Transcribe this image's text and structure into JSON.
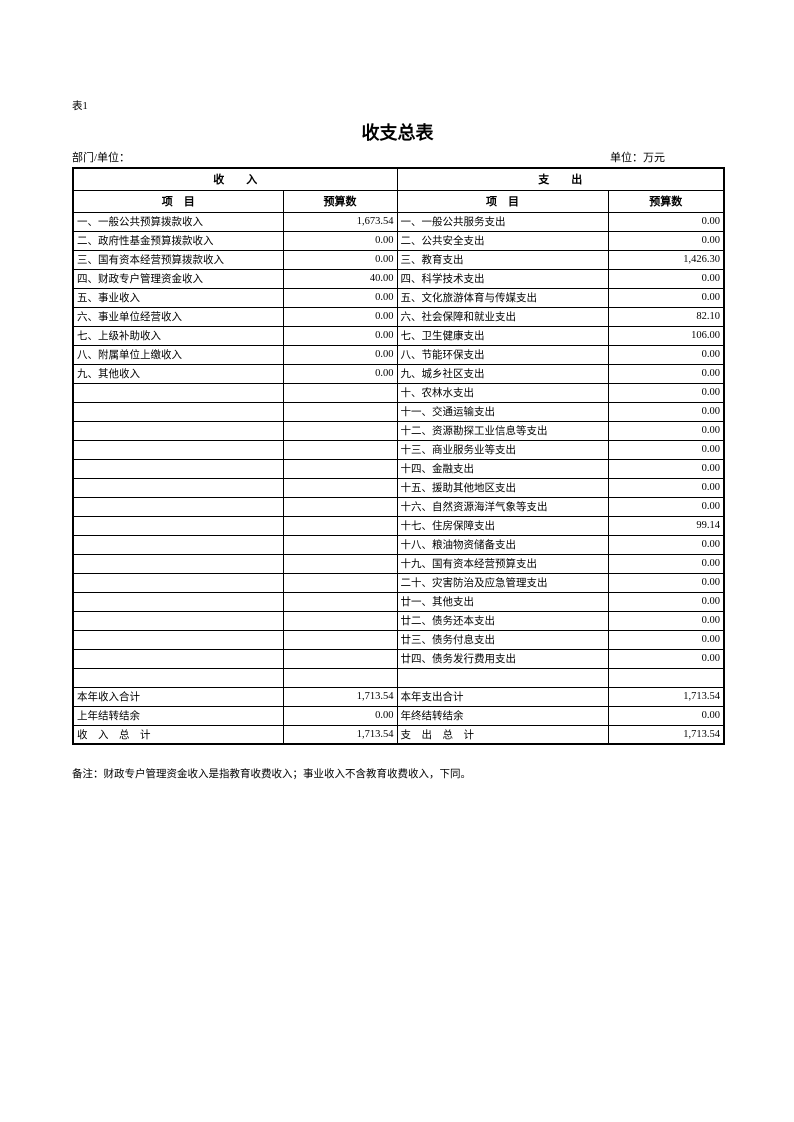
{
  "page": {
    "table_label": "表1",
    "title": "收支总表",
    "department_label": "部门/单位：",
    "unit_label": "单位：万元",
    "note": "备注：财政专户管理资金收入是指教育收费收入；事业收入不含教育收费收入，下同。"
  },
  "table": {
    "income_section_header": "收　　入",
    "expense_section_header": "支　　出",
    "item_header": "项　目",
    "budget_header": "预算数",
    "rows": [
      {
        "income_item": "一、一般公共预算拨款收入",
        "income_value": "1,673.54",
        "expense_item": "一、一般公共服务支出",
        "expense_value": "0.00"
      },
      {
        "income_item": "二、政府性基金预算拨款收入",
        "income_value": "0.00",
        "expense_item": "二、公共安全支出",
        "expense_value": "0.00"
      },
      {
        "income_item": "三、国有资本经营预算拨款收入",
        "income_value": "0.00",
        "expense_item": "三、教育支出",
        "expense_value": "1,426.30"
      },
      {
        "income_item": "四、财政专户管理资金收入",
        "income_value": "40.00",
        "expense_item": "四、科学技术支出",
        "expense_value": "0.00"
      },
      {
        "income_item": "五、事业收入",
        "income_value": "0.00",
        "expense_item": "五、文化旅游体育与传媒支出",
        "expense_value": "0.00"
      },
      {
        "income_item": "六、事业单位经营收入",
        "income_value": "0.00",
        "expense_item": "六、社会保障和就业支出",
        "expense_value": "82.10"
      },
      {
        "income_item": "七、上级补助收入",
        "income_value": "0.00",
        "expense_item": "七、卫生健康支出",
        "expense_value": "106.00"
      },
      {
        "income_item": "八、附属单位上缴收入",
        "income_value": "0.00",
        "expense_item": "八、节能环保支出",
        "expense_value": "0.00"
      },
      {
        "income_item": "九、其他收入",
        "income_value": "0.00",
        "expense_item": "九、城乡社区支出",
        "expense_value": "0.00"
      },
      {
        "income_item": "",
        "income_value": "",
        "expense_item": "十、农林水支出",
        "expense_value": "0.00"
      },
      {
        "income_item": "",
        "income_value": "",
        "expense_item": "十一、交通运输支出",
        "expense_value": "0.00"
      },
      {
        "income_item": "",
        "income_value": "",
        "expense_item": "十二、资源勘探工业信息等支出",
        "expense_value": "0.00"
      },
      {
        "income_item": "",
        "income_value": "",
        "expense_item": "十三、商业服务业等支出",
        "expense_value": "0.00"
      },
      {
        "income_item": "",
        "income_value": "",
        "expense_item": "十四、金融支出",
        "expense_value": "0.00"
      },
      {
        "income_item": "",
        "income_value": "",
        "expense_item": "十五、援助其他地区支出",
        "expense_value": "0.00"
      },
      {
        "income_item": "",
        "income_value": "",
        "expense_item": "十六、自然资源海洋气象等支出",
        "expense_value": "0.00"
      },
      {
        "income_item": "",
        "income_value": "",
        "expense_item": "十七、住房保障支出",
        "expense_value": "99.14"
      },
      {
        "income_item": "",
        "income_value": "",
        "expense_item": "十八、粮油物资储备支出",
        "expense_value": "0.00"
      },
      {
        "income_item": "",
        "income_value": "",
        "expense_item": "十九、国有资本经营预算支出",
        "expense_value": "0.00"
      },
      {
        "income_item": "",
        "income_value": "",
        "expense_item": "二十、灾害防治及应急管理支出",
        "expense_value": "0.00"
      },
      {
        "income_item": "",
        "income_value": "",
        "expense_item": "廿一、其他支出",
        "expense_value": "0.00"
      },
      {
        "income_item": "",
        "income_value": "",
        "expense_item": "廿二、债务还本支出",
        "expense_value": "0.00"
      },
      {
        "income_item": "",
        "income_value": "",
        "expense_item": "廿三、债务付息支出",
        "expense_value": "0.00"
      },
      {
        "income_item": "",
        "income_value": "",
        "expense_item": "廿四、债务发行费用支出",
        "expense_value": "0.00"
      },
      {
        "income_item": "",
        "income_value": "",
        "expense_item": "",
        "expense_value": ""
      }
    ],
    "totals": [
      {
        "income_item": "本年收入合计",
        "income_value": "1,713.54",
        "expense_item": "本年支出合计",
        "expense_value": "1,713.54"
      },
      {
        "income_item": "上年结转结余",
        "income_value": "0.00",
        "expense_item": "年终结转结余",
        "expense_value": "0.00"
      },
      {
        "income_item": "收　入　总　计",
        "income_value": "1,713.54",
        "expense_item": "支　出　总　计",
        "expense_value": "1,713.54"
      }
    ]
  }
}
